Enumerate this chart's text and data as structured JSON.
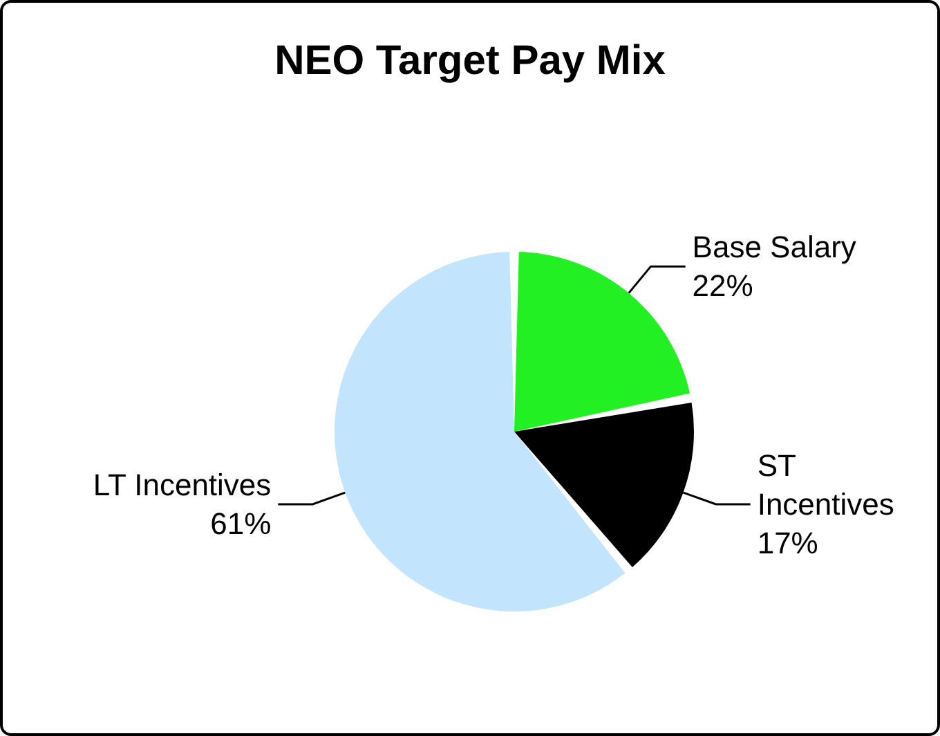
{
  "chart_data": {
    "type": "pie",
    "title": "NEO Target Pay Mix",
    "categories": [
      "Base Salary",
      "ST Incentives",
      "LT Incentives"
    ],
    "values": [
      22,
      17,
      61
    ],
    "colors": [
      "#22f022",
      "#000000",
      "#c2e4fc"
    ],
    "value_labels": [
      "22%",
      "17%",
      "61%"
    ],
    "legend": false
  }
}
